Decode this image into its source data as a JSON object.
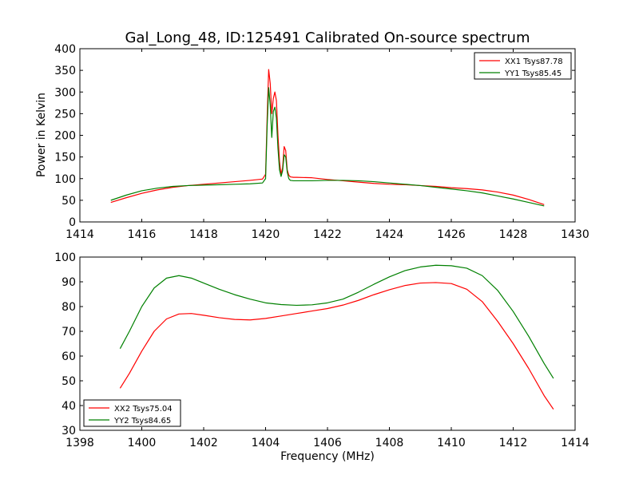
{
  "title": "Gal_Long_48, ID:125491 Calibrated On-source spectrum",
  "xlabel": "Frequency (MHz)",
  "colors": {
    "red": "#ff0000",
    "green": "#008000",
    "axes": "#000000",
    "background": "#ffffff"
  },
  "chart_data": [
    {
      "type": "line",
      "ylabel": "Power in Kelvin",
      "xlim": [
        1414,
        1430
      ],
      "ylim": [
        0,
        400
      ],
      "xticks": [
        1414,
        1416,
        1418,
        1420,
        1422,
        1424,
        1426,
        1428,
        1430
      ],
      "yticks": [
        0,
        50,
        100,
        150,
        200,
        250,
        300,
        350,
        400
      ],
      "grid": false,
      "legend_position": "top-right",
      "series": [
        {
          "name": "XX1 Tsys87.78",
          "color": "#ff0000",
          "x": [
            1415.0,
            1415.5,
            1416.0,
            1416.5,
            1417.0,
            1417.5,
            1418.0,
            1418.5,
            1419.0,
            1419.5,
            1419.9,
            1420.0,
            1420.05,
            1420.1,
            1420.15,
            1420.2,
            1420.25,
            1420.3,
            1420.35,
            1420.4,
            1420.45,
            1420.5,
            1420.55,
            1420.6,
            1420.65,
            1420.7,
            1420.75,
            1420.8,
            1420.9,
            1421.0,
            1421.5,
            1422.0,
            1422.5,
            1423.0,
            1423.5,
            1424.0,
            1424.5,
            1425.0,
            1425.5,
            1426.0,
            1426.5,
            1427.0,
            1427.5,
            1428.0,
            1428.5,
            1429.0
          ],
          "y": [
            45,
            56,
            66,
            74,
            80,
            84,
            87,
            90,
            93,
            96,
            99,
            110,
            240,
            352,
            320,
            250,
            285,
            300,
            280,
            200,
            140,
            110,
            125,
            174,
            165,
            120,
            108,
            104,
            103,
            103,
            102,
            98,
            95,
            92,
            89,
            87,
            86,
            84,
            82,
            79,
            77,
            74,
            69,
            62,
            52,
            40
          ]
        },
        {
          "name": "YY1 Tsys85.45",
          "color": "#008000",
          "x": [
            1415.0,
            1415.5,
            1416.0,
            1416.5,
            1417.0,
            1417.5,
            1418.0,
            1418.5,
            1419.0,
            1419.5,
            1419.9,
            1420.0,
            1420.05,
            1420.1,
            1420.15,
            1420.2,
            1420.25,
            1420.3,
            1420.35,
            1420.4,
            1420.45,
            1420.5,
            1420.55,
            1420.6,
            1420.65,
            1420.7,
            1420.75,
            1420.8,
            1420.9,
            1421.0,
            1421.5,
            1422.0,
            1422.5,
            1423.0,
            1423.5,
            1424.0,
            1424.5,
            1425.0,
            1425.5,
            1426.0,
            1426.5,
            1427.0,
            1427.5,
            1428.0,
            1428.5,
            1429.0
          ],
          "y": [
            50,
            62,
            72,
            78,
            82,
            84,
            85,
            86,
            87,
            88,
            90,
            100,
            220,
            310,
            270,
            195,
            255,
            265,
            240,
            170,
            120,
            105,
            118,
            155,
            150,
            115,
            100,
            96,
            95,
            95,
            95,
            96,
            96,
            95,
            93,
            90,
            87,
            84,
            80,
            76,
            72,
            67,
            60,
            53,
            45,
            37
          ]
        }
      ]
    },
    {
      "type": "line",
      "xlabel": "Frequency (MHz)",
      "xlim": [
        1398,
        1414
      ],
      "ylim": [
        30,
        100
      ],
      "xticks": [
        1398,
        1400,
        1402,
        1404,
        1406,
        1408,
        1410,
        1412,
        1414
      ],
      "yticks": [
        30,
        40,
        50,
        60,
        70,
        80,
        90,
        100
      ],
      "grid": false,
      "legend_position": "bottom-left",
      "series": [
        {
          "name": "XX2 Tsys75.04",
          "color": "#ff0000",
          "x": [
            1399.3,
            1399.6,
            1400.0,
            1400.4,
            1400.8,
            1401.2,
            1401.6,
            1402.0,
            1402.5,
            1403.0,
            1403.5,
            1404.0,
            1404.5,
            1405.0,
            1405.5,
            1406.0,
            1406.5,
            1407.0,
            1407.5,
            1408.0,
            1408.5,
            1409.0,
            1409.5,
            1410.0,
            1410.5,
            1411.0,
            1411.5,
            1412.0,
            1412.5,
            1413.0,
            1413.3
          ],
          "y": [
            47,
            53,
            62,
            70,
            75,
            77,
            77.2,
            76.5,
            75.5,
            74.8,
            74.6,
            75.2,
            76.2,
            77.2,
            78.2,
            79.2,
            80.6,
            82.5,
            84.8,
            86.8,
            88.5,
            89.5,
            89.7,
            89.3,
            87.0,
            82.0,
            74.0,
            65.0,
            55.0,
            44.0,
            38.5
          ]
        },
        {
          "name": "YY2 Tsys84.65",
          "color": "#008000",
          "x": [
            1399.3,
            1399.6,
            1400.0,
            1400.4,
            1400.8,
            1401.2,
            1401.6,
            1402.0,
            1402.5,
            1403.0,
            1403.5,
            1404.0,
            1404.5,
            1405.0,
            1405.5,
            1406.0,
            1406.5,
            1407.0,
            1407.5,
            1408.0,
            1408.5,
            1409.0,
            1409.5,
            1410.0,
            1410.5,
            1411.0,
            1411.5,
            1412.0,
            1412.5,
            1413.0,
            1413.3
          ],
          "y": [
            63,
            70,
            80,
            87.5,
            91.5,
            92.5,
            91.5,
            89.5,
            87.0,
            84.8,
            83.0,
            81.5,
            80.8,
            80.5,
            80.7,
            81.5,
            83.0,
            85.8,
            89.0,
            92.0,
            94.5,
            96.0,
            96.7,
            96.5,
            95.5,
            92.5,
            86.5,
            78.0,
            68.0,
            57.0,
            51.0
          ]
        }
      ]
    }
  ]
}
